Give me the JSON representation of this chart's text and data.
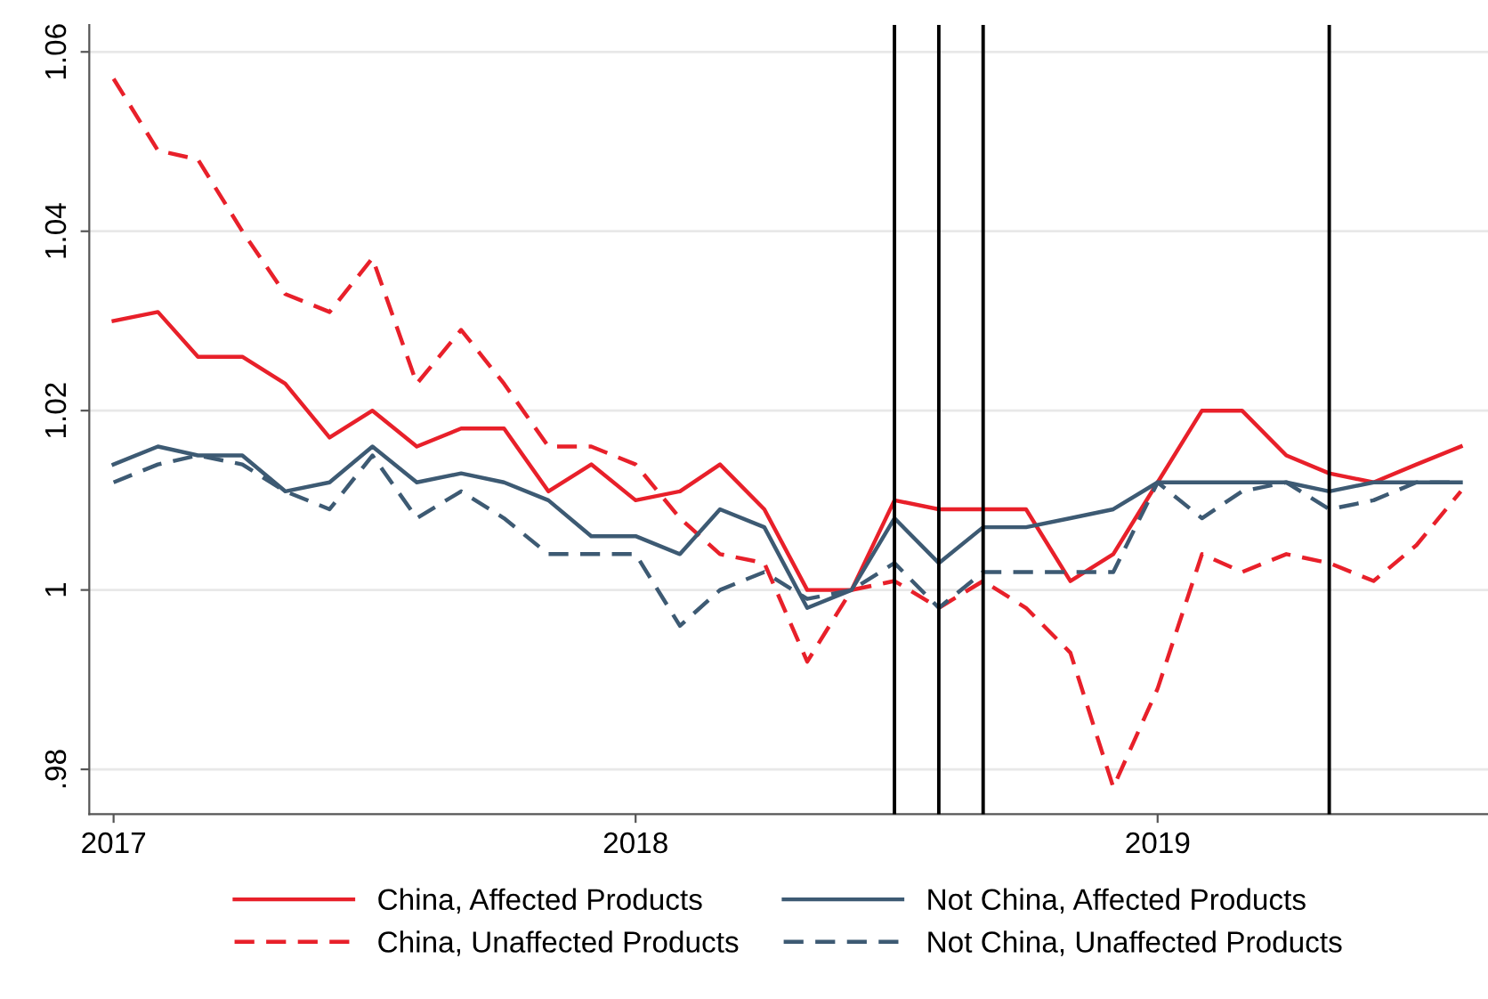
{
  "chart_data": {
    "type": "line",
    "x": [
      "2017-01",
      "2017-02",
      "2017-03",
      "2017-04",
      "2017-05",
      "2017-06",
      "2017-07",
      "2017-08",
      "2017-09",
      "2017-10",
      "2017-11",
      "2017-12",
      "2018-01",
      "2018-02",
      "2018-03",
      "2018-04",
      "2018-05",
      "2018-06",
      "2018-07",
      "2018-08",
      "2018-09",
      "2018-10",
      "2018-11",
      "2018-12",
      "2019-01",
      "2019-02",
      "2019-03",
      "2019-04",
      "2019-05",
      "2019-06",
      "2019-07",
      "2019-08"
    ],
    "series": [
      {
        "name": "China, Affected Products",
        "color": "#e8202a",
        "line_style": "solid",
        "values": [
          1.03,
          1.031,
          1.026,
          1.026,
          1.023,
          1.017,
          1.02,
          1.016,
          1.018,
          1.018,
          1.011,
          1.014,
          1.01,
          1.011,
          1.014,
          1.009,
          1.0,
          1.0,
          1.01,
          1.009,
          1.009,
          1.009,
          1.001,
          1.004,
          1.012,
          1.02,
          1.02,
          1.015,
          1.013,
          1.012,
          1.014,
          1.016
        ]
      },
      {
        "name": "China, Unaffected Products",
        "color": "#e8202a",
        "line_style": "dashed",
        "values": [
          1.057,
          1.049,
          1.048,
          1.04,
          1.033,
          1.031,
          1.037,
          1.023,
          1.029,
          1.023,
          1.016,
          1.016,
          1.014,
          1.008,
          1.004,
          1.003,
          0.992,
          1.0,
          1.001,
          0.998,
          1.001,
          0.998,
          0.993,
          0.978,
          0.989,
          1.004,
          1.002,
          1.004,
          1.003,
          1.001,
          1.005,
          1.011
        ]
      },
      {
        "name": "Not China, Affected Products",
        "color": "#3d5a73",
        "line_style": "solid",
        "values": [
          1.014,
          1.016,
          1.015,
          1.015,
          1.011,
          1.012,
          1.016,
          1.012,
          1.013,
          1.012,
          1.01,
          1.006,
          1.006,
          1.004,
          1.009,
          1.007,
          0.998,
          1.0,
          1.008,
          1.003,
          1.007,
          1.007,
          1.008,
          1.009,
          1.012,
          1.012,
          1.012,
          1.012,
          1.011,
          1.012,
          1.012,
          1.012
        ]
      },
      {
        "name": "Not China, Unaffected Products",
        "color": "#3d5a73",
        "line_style": "dashed",
        "values": [
          1.012,
          1.014,
          1.015,
          1.014,
          1.011,
          1.009,
          1.015,
          1.008,
          1.011,
          1.008,
          1.004,
          1.004,
          1.004,
          0.996,
          1.0,
          1.002,
          0.999,
          1.0,
          1.003,
          0.998,
          1.002,
          1.002,
          1.002,
          1.002,
          1.012,
          1.008,
          1.011,
          1.012,
          1.009,
          1.01,
          1.012,
          1.012
        ]
      }
    ],
    "xlim": [
      "2016-12-15",
      "2019-08-20"
    ],
    "xticks": [
      {
        "value": "2017-01",
        "label": "2017"
      },
      {
        "value": "2018-01",
        "label": "2018"
      },
      {
        "value": "2019-01",
        "label": "2019"
      }
    ],
    "ylim": [
      0.975,
      1.063
    ],
    "yticks": [
      {
        "value": 0.98,
        "label": ".98"
      },
      1,
      1.02,
      1.04,
      1.06
    ],
    "ref_lines": [
      {
        "axis": "x",
        "value": "2018-07",
        "color": "#000000"
      },
      {
        "axis": "x",
        "value": "2018-08",
        "color": "#000000"
      },
      {
        "axis": "x",
        "value": "2018-09",
        "color": "#000000"
      },
      {
        "axis": "x",
        "value": "2019-05",
        "color": "#000000"
      }
    ],
    "grid": "y",
    "legend": "bottom",
    "marker": "none"
  }
}
